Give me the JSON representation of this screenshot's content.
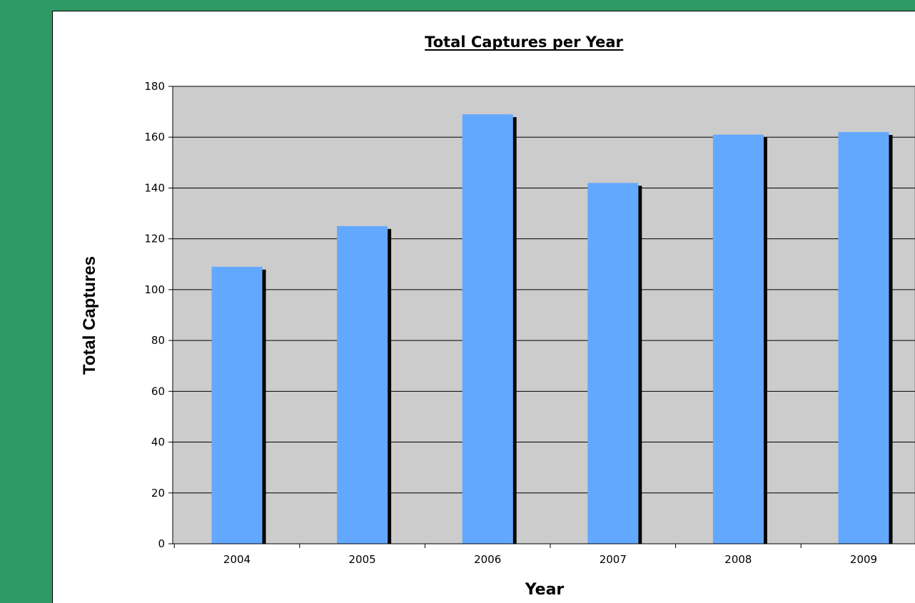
{
  "colors": {
    "page_background": "#2e9a66",
    "chart_area": "#ffffff",
    "plot_area": "#cccccc",
    "bar_fill": "#63a8ff",
    "bar_shadow": "#000000",
    "gridline": "#000000"
  },
  "chart_data": {
    "type": "bar",
    "title": "Total Captures per Year",
    "xlabel": "Year",
    "ylabel": "Total Captures",
    "categories": [
      "2004",
      "2005",
      "2006",
      "2007",
      "2008",
      "2009"
    ],
    "values": [
      109,
      125,
      169,
      142,
      161,
      162
    ],
    "ylim": [
      0,
      180
    ],
    "yticks": [
      0,
      20,
      40,
      60,
      80,
      100,
      120,
      140,
      160,
      180
    ],
    "grid": "horizontal",
    "legend": "none"
  }
}
